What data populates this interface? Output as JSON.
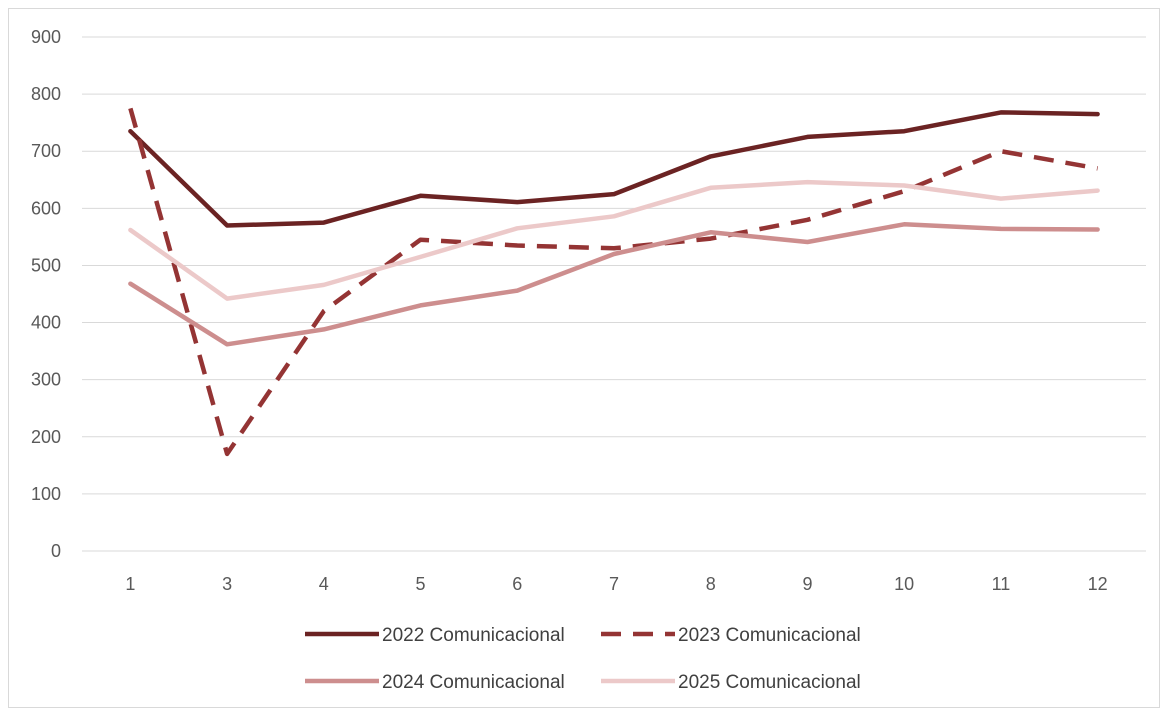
{
  "chart_data": {
    "type": "line",
    "title": "",
    "xlabel": "",
    "ylabel": "",
    "categories": [
      "1",
      "3",
      "4",
      "5",
      "6",
      "7",
      "8",
      "9",
      "10",
      "11",
      "12"
    ],
    "ylim": [
      0,
      900
    ],
    "yticks": [
      "0",
      "100",
      "200",
      "300",
      "400",
      "500",
      "600",
      "700",
      "800",
      "900"
    ],
    "grid": true,
    "legend_position": "bottom",
    "series": [
      {
        "name": "2022 Comunicacional",
        "color": "#6b2323",
        "dashed": false,
        "values": [
          735,
          570,
          575,
          622,
          611,
          625,
          691,
          725,
          735,
          768,
          765
        ]
      },
      {
        "name": "2023 Comunicacional",
        "color": "#943434",
        "dashed": true,
        "values": [
          775,
          170,
          420,
          545,
          535,
          530,
          547,
          580,
          630,
          700,
          670
        ]
      },
      {
        "name": "2024 Comunicacional",
        "color": "#cd8e8e",
        "dashed": false,
        "values": [
          468,
          362,
          388,
          430,
          456,
          520,
          558,
          541,
          572,
          564,
          563
        ]
      },
      {
        "name": "2025 Comunicacional",
        "color": "#ecc9c9",
        "dashed": false,
        "values": [
          562,
          442,
          466,
          515,
          565,
          586,
          636,
          646,
          640,
          617,
          631
        ]
      }
    ]
  }
}
